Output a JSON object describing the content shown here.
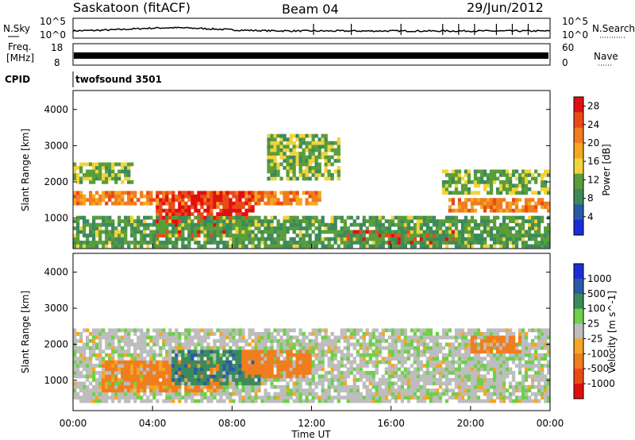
{
  "header": {
    "station": "Saskatoon (fitACF)",
    "beam": "Beam 04",
    "date": "29/Jun/2012"
  },
  "nsky_panel": {
    "left_label": "N.Sky",
    "right_label": "N.Search",
    "left_ticks": [
      "10^5",
      "10^0"
    ],
    "right_ticks": [
      "10^5",
      "10^0"
    ]
  },
  "freq_panel": {
    "left_label_line1": "Freq.",
    "left_label_line2": "[MHz]",
    "right_label": "Nave",
    "left_ticks": [
      "18",
      "8"
    ],
    "right_ticks": [
      "60",
      "0"
    ]
  },
  "cpid_panel": {
    "label": "CPID",
    "value": "twofsound 3501"
  },
  "chart_data": [
    {
      "type": "heatmap",
      "name": "Power",
      "xlabel": "",
      "ylabel": "Slant Range [km]",
      "xlim": [
        "00:00",
        "24:00"
      ],
      "ylim": [
        180,
        4500
      ],
      "y_ticks": [
        1000,
        2000,
        3000,
        4000
      ],
      "colorbar": {
        "label": "Power [dB]",
        "ticks": [
          4,
          8,
          12,
          16,
          20,
          24,
          28
        ],
        "range": [
          0,
          30
        ],
        "colors": [
          "#1a2dd8",
          "#2b5aa8",
          "#3c8a5c",
          "#5a9d3a",
          "#f2d33a",
          "#f5a623",
          "#f07d1e",
          "#ea4a16",
          "#e01010"
        ]
      },
      "bands": [
        {
          "t0": 0.0,
          "t1": 12.5,
          "r0": 1400,
          "r1": 1750,
          "level": 22
        },
        {
          "t0": 4.2,
          "t1": 9.2,
          "r0": 450,
          "r1": 1750,
          "level": 28
        },
        {
          "t0": 13.5,
          "t1": 19.5,
          "r0": 300,
          "r1": 700,
          "level": 28
        },
        {
          "t0": 18.8,
          "t1": 24.0,
          "r0": 1200,
          "r1": 1550,
          "level": 22
        },
        {
          "t0": 0.0,
          "t1": 24.0,
          "r0": 180,
          "r1": 1100,
          "level": 10
        },
        {
          "t0": 0.0,
          "t1": 3.0,
          "r0": 1900,
          "r1": 2500,
          "level": 12
        },
        {
          "t0": 9.8,
          "t1": 13.5,
          "r0": 2000,
          "r1": 3300,
          "level": 12
        },
        {
          "t0": 18.5,
          "t1": 24.0,
          "r0": 1700,
          "r1": 2300,
          "level": 12
        }
      ]
    },
    {
      "type": "heatmap",
      "name": "Velocity",
      "xlabel": "Time UT",
      "ylabel": "Slant Range [km]",
      "xlim": [
        "00:00",
        "24:00"
      ],
      "ylim": [
        180,
        4500
      ],
      "x_ticks": [
        "00:00",
        "04:00",
        "08:00",
        "12:00",
        "16:00",
        "20:00",
        "00:00"
      ],
      "y_ticks": [
        1000,
        2000,
        3000,
        4000
      ],
      "colorbar": {
        "label": "Velocity [m s^-1]",
        "ticks": [
          1000,
          500,
          100,
          25,
          -25,
          -100,
          -500,
          -1000
        ],
        "colors": [
          "#1a2dd8",
          "#2b5aa8",
          "#3c8a5c",
          "#6fcf4a",
          "#bdbdbd",
          "#f5a623",
          "#f07d1e",
          "#ea4a16",
          "#e01010"
        ]
      },
      "bands": [
        {
          "t0": 0.0,
          "t1": 24.0,
          "r0": 400,
          "r1": 2400,
          "level": 0
        },
        {
          "t0": 1.5,
          "t1": 7.5,
          "r0": 700,
          "r1": 1600,
          "level": -120
        },
        {
          "t0": 5.0,
          "t1": 9.5,
          "r0": 900,
          "r1": 1800,
          "level": 80
        },
        {
          "t0": 8.5,
          "t1": 12.0,
          "r0": 1100,
          "r1": 1800,
          "level": -150
        },
        {
          "t0": 20.0,
          "t1": 22.5,
          "r0": 1800,
          "r1": 2200,
          "level": -150
        }
      ]
    }
  ]
}
